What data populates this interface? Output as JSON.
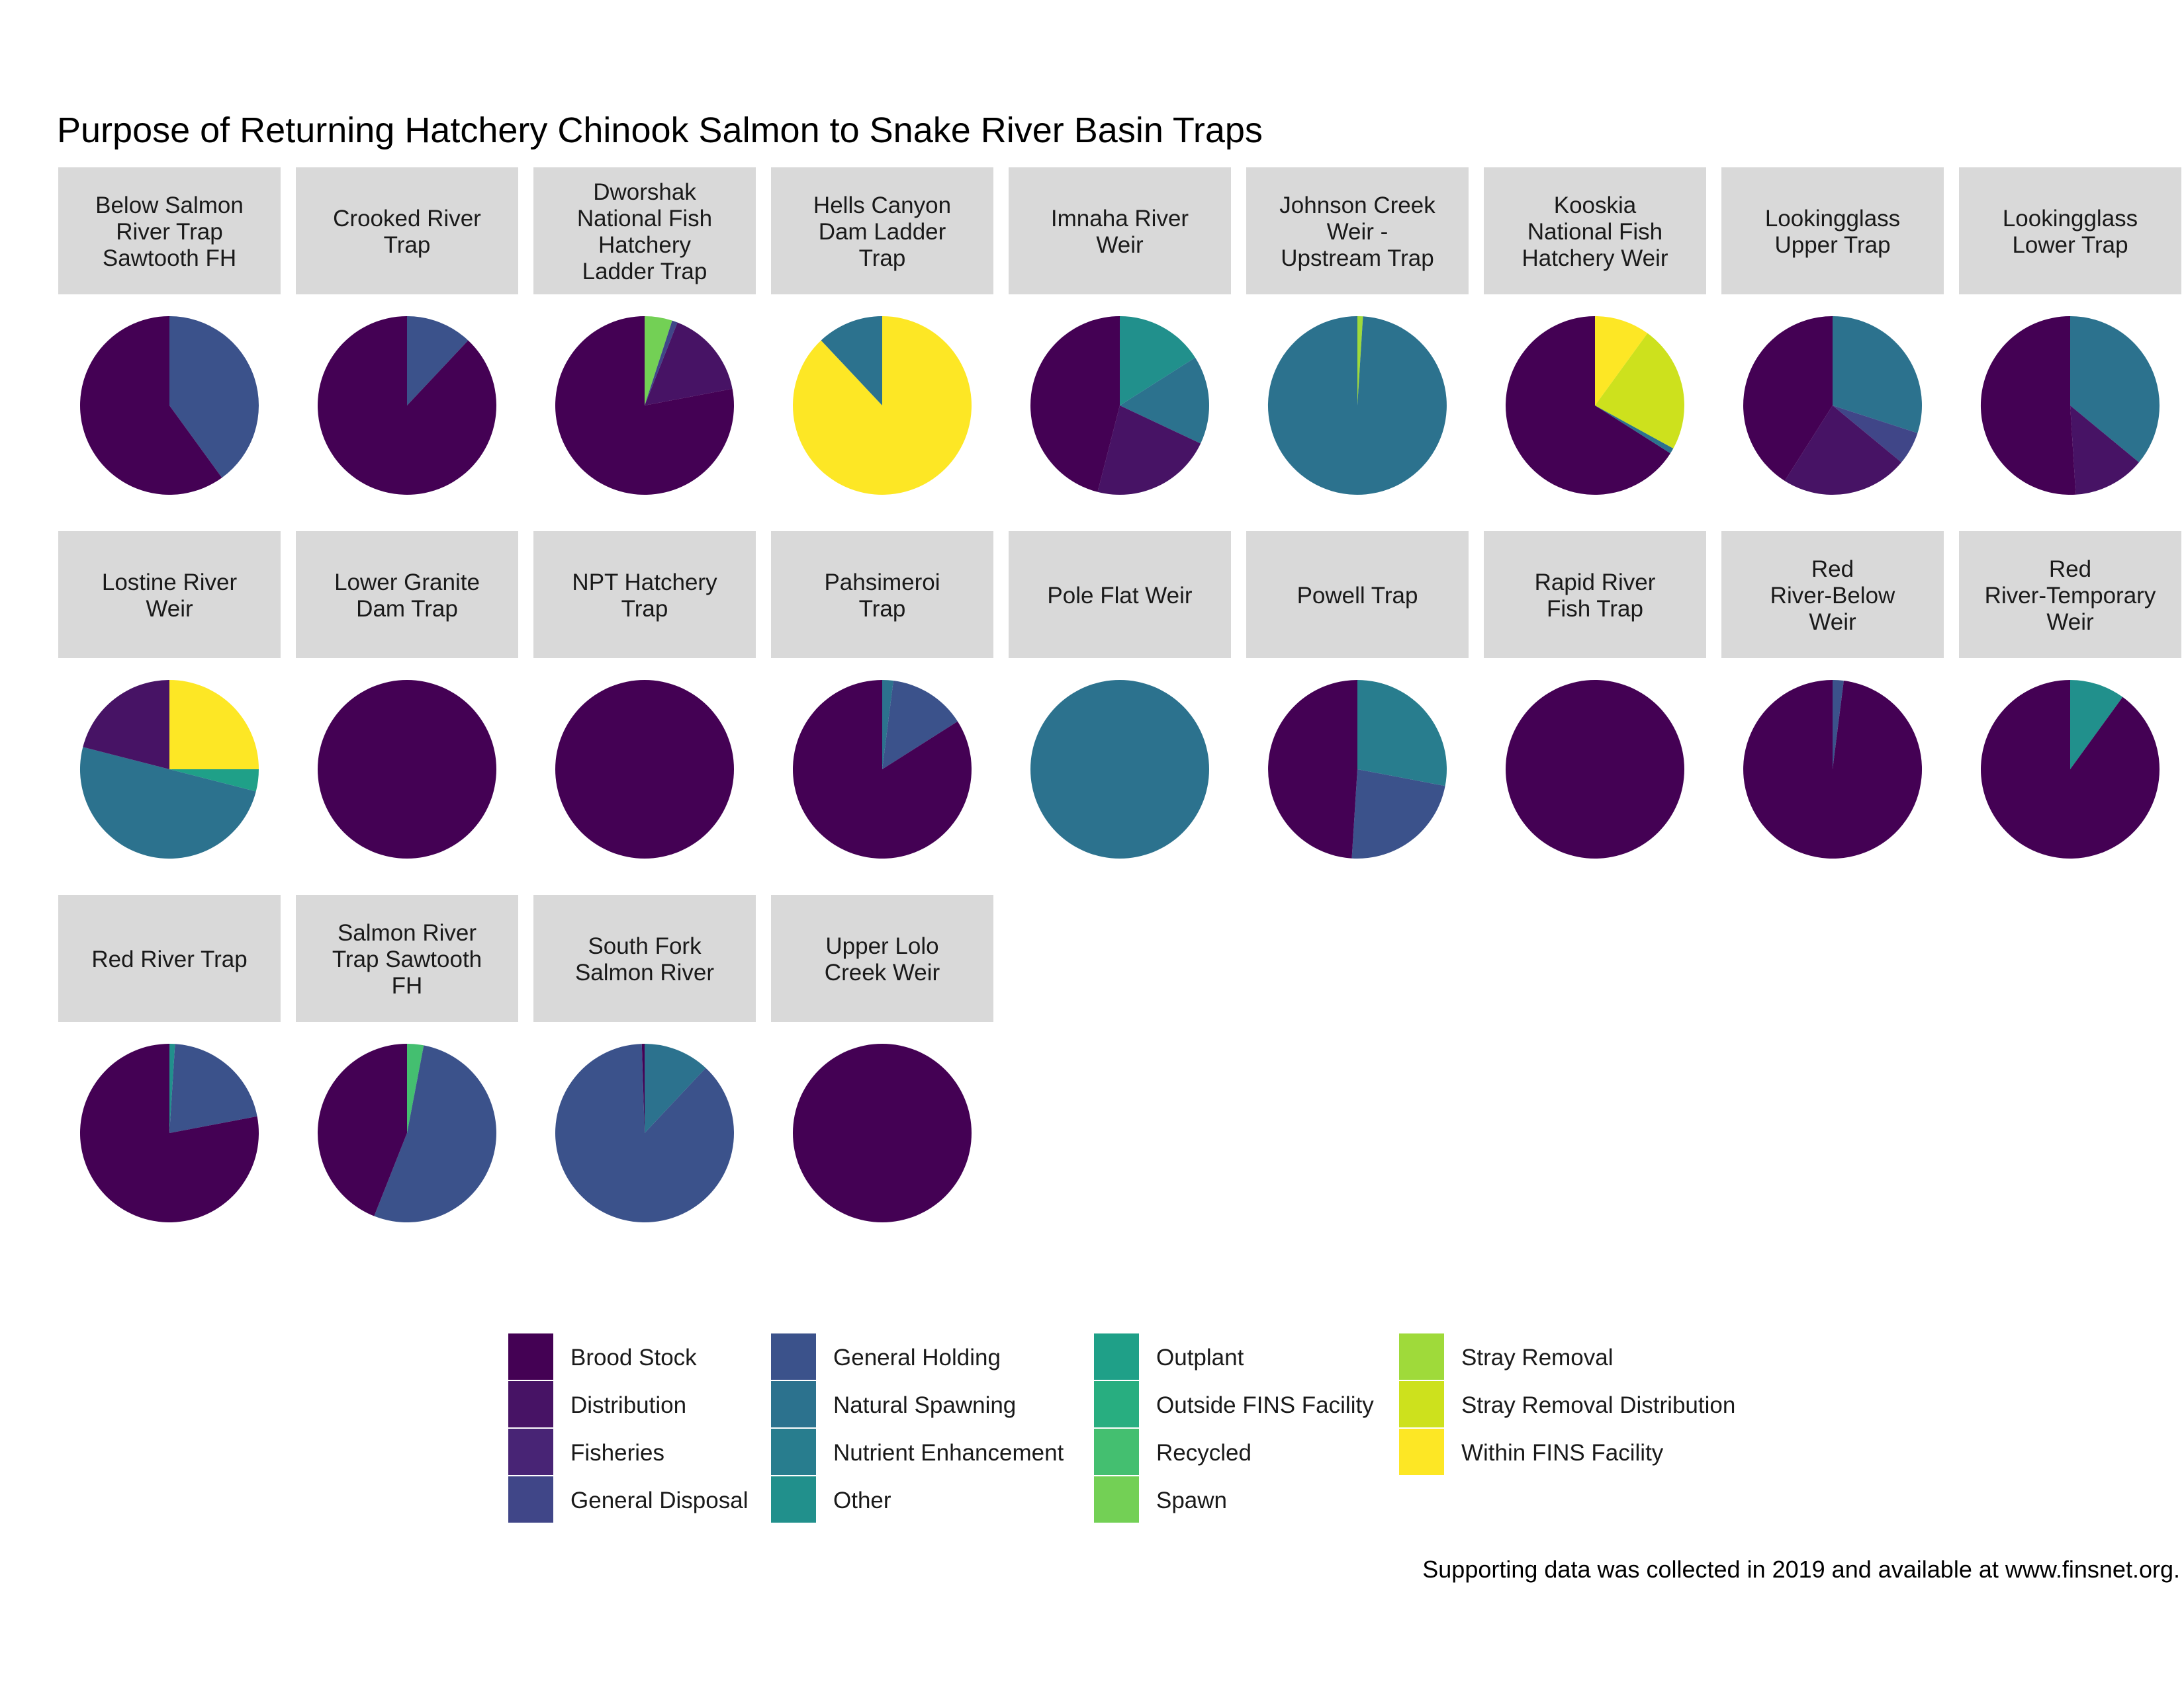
{
  "chart_data": {
    "type": "pie",
    "title": "Purpose of Returning Hatchery Chinook Salmon to Snake River Basin Traps",
    "caption": "Supporting data was collected in 2019 and available at www.finsnet.org.",
    "categories": [
      {
        "name": "Brood Stock",
        "color": "#440154"
      },
      {
        "name": "Distribution",
        "color": "#471365"
      },
      {
        "name": "Fisheries",
        "color": "#482475"
      },
      {
        "name": "General Disposal",
        "color": "#404688"
      },
      {
        "name": "General Holding",
        "color": "#3B528B"
      },
      {
        "name": "Natural Spawning",
        "color": "#2C728E"
      },
      {
        "name": "Nutrient Enhancement",
        "color": "#287D8E"
      },
      {
        "name": "Other",
        "color": "#21908C"
      },
      {
        "name": "Outplant",
        "color": "#1FA088"
      },
      {
        "name": "Outside FINS Facility",
        "color": "#28AE80"
      },
      {
        "name": "Recycled",
        "color": "#44BF70"
      },
      {
        "name": "Spawn",
        "color": "#73D055"
      },
      {
        "name": "Stray Removal",
        "color": "#9FDA3A"
      },
      {
        "name": "Stray Removal Distribution",
        "color": "#CDE11D"
      },
      {
        "name": "Within FINS Facility",
        "color": "#FDE725"
      }
    ],
    "panels": [
      {
        "label": [
          "Below Salmon",
          "River Trap",
          "Sawtooth FH"
        ],
        "values": {
          "General Holding": 0.4,
          "Brood Stock": 0.6
        }
      },
      {
        "label": [
          "Crooked River",
          "Trap"
        ],
        "values": {
          "General Holding": 0.12,
          "Brood Stock": 0.88
        }
      },
      {
        "label": [
          "Dworshak",
          "National Fish",
          "Hatchery",
          "Ladder Trap"
        ],
        "values": {
          "Spawn": 0.05,
          "General Disposal": 0.01,
          "Distribution": 0.16,
          "Brood Stock": 0.78
        }
      },
      {
        "label": [
          "Hells Canyon",
          "Dam Ladder",
          "Trap"
        ],
        "values": {
          "Natural Spawning": 0.12,
          "Within FINS Facility": 0.88
        }
      },
      {
        "label": [
          "Imnaha River",
          "Weir"
        ],
        "values": {
          "Other": 0.16,
          "Natural Spawning": 0.16,
          "Distribution": 0.22,
          "Brood Stock": 0.46
        }
      },
      {
        "label": [
          "Johnson Creek",
          "Weir -",
          "Upstream Trap"
        ],
        "values": {
          "Stray Removal": 0.01,
          "Natural Spawning": 0.99
        }
      },
      {
        "label": [
          "Kooskia",
          "National Fish",
          "Hatchery Weir"
        ],
        "values": {
          "Within FINS Facility": 0.1,
          "Stray Removal Distribution": 0.23,
          "Natural Spawning": 0.01,
          "Brood Stock": 0.66
        }
      },
      {
        "label": [
          "Lookingglass",
          "Upper Trap"
        ],
        "values": {
          "Natural Spawning": 0.3,
          "General Disposal": 0.06,
          "Distribution": 0.23,
          "Brood Stock": 0.41
        }
      },
      {
        "label": [
          "Lookingglass",
          "Lower Trap"
        ],
        "values": {
          "Natural Spawning": 0.36,
          "Distribution": 0.13,
          "Brood Stock": 0.51
        }
      },
      {
        "label": [
          "Lostine River",
          "Weir"
        ],
        "values": {
          "Within FINS Facility": 0.25,
          "Outplant": 0.04,
          "Natural Spawning": 0.5,
          "Distribution": 0.21
        }
      },
      {
        "label": [
          "Lower Granite",
          "Dam Trap"
        ],
        "values": {
          "Brood Stock": 1.0
        }
      },
      {
        "label": [
          "NPT Hatchery",
          "Trap"
        ],
        "values": {
          "Brood Stock": 1.0
        }
      },
      {
        "label": [
          "Pahsimeroi",
          "Trap"
        ],
        "values": {
          "Natural Spawning": 0.02,
          "General Holding": 0.14,
          "Brood Stock": 0.84
        }
      },
      {
        "label": [
          "Pole Flat Weir"
        ],
        "values": {
          "Natural Spawning": 1.0
        }
      },
      {
        "label": [
          "Powell Trap"
        ],
        "values": {
          "Nutrient Enhancement": 0.28,
          "General Holding": 0.23,
          "Brood Stock": 0.49
        }
      },
      {
        "label": [
          "Rapid River",
          "Fish Trap"
        ],
        "values": {
          "Brood Stock": 1.0
        }
      },
      {
        "label": [
          "Red",
          "River-Below",
          "Weir"
        ],
        "values": {
          "General Holding": 0.02,
          "Brood Stock": 0.98
        }
      },
      {
        "label": [
          "Red",
          "River-Temporary",
          "Weir"
        ],
        "values": {
          "Other": 0.1,
          "Brood Stock": 0.9
        }
      },
      {
        "label": [
          "Red River Trap"
        ],
        "values": {
          "Other": 0.01,
          "General Holding": 0.21,
          "Brood Stock": 0.78
        }
      },
      {
        "label": [
          "Salmon River",
          "Trap Sawtooth",
          "FH"
        ],
        "values": {
          "Recycled": 0.03,
          "General Holding": 0.53,
          "Brood Stock": 0.44
        }
      },
      {
        "label": [
          "South Fork",
          "Salmon River"
        ],
        "values": {
          "Natural Spawning": 0.12,
          "General Holding": 0.875,
          "Brood Stock": 0.005
        }
      },
      {
        "label": [
          "Upper Lolo",
          "Creek Weir"
        ],
        "values": {
          "Brood Stock": 1.0
        }
      }
    ],
    "legend_position": "bottom"
  }
}
